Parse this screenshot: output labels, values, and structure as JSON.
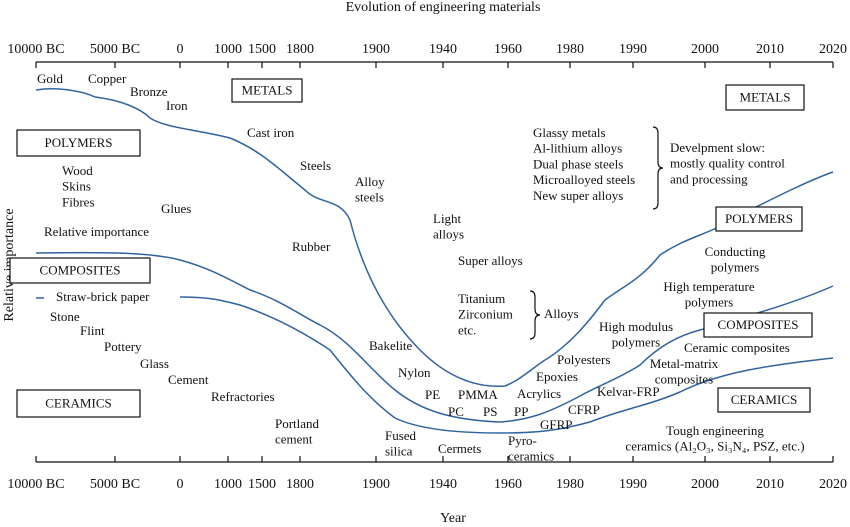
{
  "title": "Evolution of engineering materials",
  "axis": {
    "ticks": [
      "10000 BC",
      "5000 BC",
      "0",
      "1000",
      "1500",
      "1800",
      "1900",
      "1940",
      "1960",
      "1980",
      "1990",
      "2000",
      "2010",
      "2020"
    ],
    "x_label": "Year",
    "y_label": "Relative importance"
  },
  "boxes": [
    "METALS",
    "POLYMERS",
    "COMPOSITES",
    "CERAMICS",
    "METALS",
    "POLYMERS",
    "COMPOSITES",
    "CERAMICS"
  ],
  "labels": [
    [
      "Gold"
    ],
    [
      "Copper"
    ],
    [
      "Bronze"
    ],
    [
      "Iron"
    ],
    [
      "Cast iron"
    ],
    [
      "Steels"
    ],
    [
      "Alloy",
      "steels"
    ],
    [
      "Wood",
      "Skins",
      "Fibres"
    ],
    [
      "Glues"
    ],
    [
      "Relative importance"
    ],
    [
      "Rubber"
    ],
    [
      "Light",
      "alloys"
    ],
    [
      "Super alloys"
    ],
    [
      "Titanium",
      "Zirconium",
      "etc."
    ],
    [
      "Alloys"
    ],
    [
      "Straw-brick paper"
    ],
    [
      "Stone"
    ],
    [
      "Flint"
    ],
    [
      "Pottery"
    ],
    [
      "Glass"
    ],
    [
      "Cement"
    ],
    [
      "Refractories"
    ],
    [
      "Portland",
      "cement"
    ],
    [
      "Bakelite"
    ],
    [
      "Nylon"
    ],
    [
      "PE"
    ],
    [
      "PMMA"
    ],
    [
      "PC"
    ],
    [
      "PS"
    ],
    [
      "PP"
    ],
    [
      "Acrylics"
    ],
    [
      "Epoxies"
    ],
    [
      "Polyesters"
    ],
    [
      "GFRP"
    ],
    [
      "CFRP"
    ],
    [
      "Kelvar-FRP"
    ],
    [
      "Fused",
      "silica"
    ],
    [
      "Cermets"
    ],
    [
      "Pyro-",
      "ceramics"
    ],
    [
      "Glassy metals",
      "Al-lithium alloys",
      "Dual phase steels",
      "Microalloyed steels",
      "New super alloys"
    ],
    [
      "Develpment slow:",
      "mostly quality control",
      "and processing"
    ],
    [
      "Conducting",
      "polymers"
    ],
    [
      "High temperature",
      "polymers"
    ],
    [
      "High modulus",
      "polymers"
    ],
    [
      "Ceramic composites"
    ],
    [
      "Metal-matrix",
      "composites"
    ],
    [
      "Tough engineering",
      "ceramics (Al₂O₃, Si₃N₄, PSZ, etc.)"
    ]
  ]
}
